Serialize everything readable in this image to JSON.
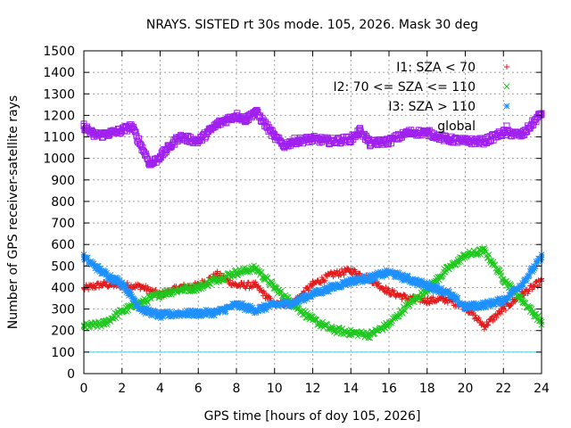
{
  "chart_data": {
    "type": "scatter",
    "title": "NRAYS. SISTED rt 30s mode. 105, 2026. Mask 30 deg",
    "xlabel": "GPS time [hours of doy 105, 2026]",
    "ylabel": "Number of GPS receiver-satellite rays",
    "xlim": [
      0,
      24
    ],
    "ylim": [
      0,
      1500
    ],
    "xticks": [
      0,
      2,
      4,
      6,
      8,
      10,
      12,
      14,
      16,
      18,
      20,
      22,
      24
    ],
    "yticks": [
      0,
      100,
      200,
      300,
      400,
      500,
      600,
      700,
      800,
      900,
      1000,
      1100,
      1200,
      1300,
      1400,
      1500
    ],
    "grid": true,
    "legend_position": "top-right",
    "threshold_line": {
      "y": 100,
      "color": "#40d0e0"
    },
    "series": [
      {
        "name": "I1: SZA < 70",
        "marker": "plus",
        "color": "#e41a1c",
        "x": [
          0,
          1,
          2,
          3,
          4,
          5,
          6,
          7,
          8,
          9,
          10,
          11,
          12,
          13,
          14,
          15,
          16,
          17,
          18,
          19,
          20,
          21,
          22,
          23,
          24
        ],
        "y": [
          395,
          415,
          410,
          405,
          365,
          400,
          410,
          460,
          410,
          410,
          320,
          330,
          415,
          460,
          480,
          440,
          380,
          350,
          340,
          345,
          310,
          220,
          300,
          370,
          430
        ]
      },
      {
        "name": "I2: 70 <= SZA <= 110",
        "marker": "x",
        "color": "#1ec81e",
        "x": [
          0,
          1,
          2,
          3,
          4,
          5,
          6,
          7,
          8,
          9,
          10,
          11,
          12,
          13,
          14,
          15,
          16,
          17,
          18,
          19,
          20,
          21,
          22,
          23,
          24
        ],
        "y": [
          220,
          230,
          290,
          330,
          370,
          390,
          400,
          440,
          470,
          490,
          400,
          320,
          250,
          205,
          190,
          180,
          230,
          320,
          390,
          480,
          550,
          570,
          440,
          340,
          240
        ]
      },
      {
        "name": "I3: SZA > 110",
        "marker": "star",
        "color": "#1e90ff",
        "x": [
          0,
          1,
          2,
          3,
          4,
          5,
          6,
          7,
          8,
          9,
          10,
          11,
          12,
          13,
          14,
          15,
          16,
          17,
          18,
          19,
          20,
          21,
          22,
          23,
          24
        ],
        "y": [
          540,
          470,
          420,
          300,
          270,
          280,
          280,
          285,
          320,
          295,
          320,
          330,
          370,
          400,
          430,
          445,
          470,
          440,
          410,
          380,
          310,
          320,
          340,
          420,
          540
        ]
      },
      {
        "name": "global",
        "marker": "square",
        "color": "#a020f0",
        "x": [
          0,
          0.5,
          1,
          2,
          2.5,
          3,
          3.5,
          4,
          5,
          6,
          7,
          8,
          8.5,
          9,
          10,
          10.5,
          11,
          12,
          13,
          14,
          14.5,
          15,
          16,
          17,
          18,
          19,
          20,
          21,
          22,
          23,
          24
        ],
        "y": [
          1150,
          1110,
          1110,
          1130,
          1150,
          1060,
          970,
          1010,
          1100,
          1080,
          1160,
          1200,
          1180,
          1220,
          1100,
          1060,
          1080,
          1090,
          1080,
          1090,
          1130,
          1070,
          1080,
          1120,
          1120,
          1090,
          1080,
          1080,
          1120,
          1110,
          1210
        ]
      }
    ]
  }
}
